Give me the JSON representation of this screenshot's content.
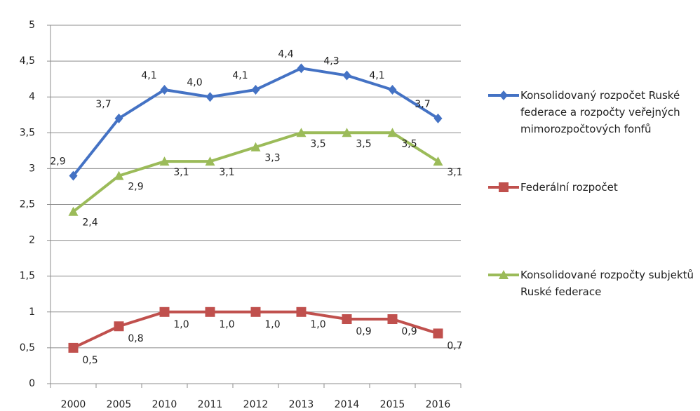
{
  "chart_data": {
    "type": "line",
    "categories": [
      "2000",
      "2005",
      "2010",
      "2011",
      "2012",
      "2013",
      "2014",
      "2015",
      "2016"
    ],
    "ylim": [
      0,
      5
    ],
    "yticks": [
      0,
      {
        "value": 0.5,
        "label": "0,5"
      },
      1,
      {
        "value": 1.5,
        "label": "1,5"
      },
      2,
      {
        "value": 2.5,
        "label": "2,5"
      },
      3,
      {
        "value": 3.5,
        "label": "3,5"
      },
      4,
      {
        "value": 4.5,
        "label": "4,5"
      },
      5
    ],
    "grid": true,
    "legend": "right",
    "series": [
      {
        "name": "Konsolidovaný rozpočet Ruské federace a rozpočty veřejných mimorozpočtových fonfů",
        "color": "#4472c4",
        "marker": "diamond",
        "values": [
          2.9,
          3.7,
          4.1,
          4.0,
          4.1,
          4.4,
          4.3,
          4.1,
          3.7
        ],
        "value_labels": [
          "2,9",
          "3,7",
          "4,1",
          "4,0",
          "4,1",
          "4,4",
          "4,3",
          "4,1",
          "3,7"
        ]
      },
      {
        "name": "Federální rozpočet",
        "color": "#c0504d",
        "marker": "square",
        "values": [
          0.5,
          0.8,
          1.0,
          1.0,
          1.0,
          1.0,
          0.9,
          0.9,
          0.7
        ],
        "value_labels": [
          "0,5",
          "0,8",
          "1,0",
          "1,0",
          "1,0",
          "1,0",
          "0,9",
          "0,9",
          "0,7"
        ]
      },
      {
        "name": "Konsolidované rozpočty subjektů Ruské federace",
        "color": "#9bbb59",
        "marker": "triangle",
        "values": [
          2.4,
          2.9,
          3.1,
          3.1,
          3.3,
          3.5,
          3.5,
          3.5,
          3.1
        ],
        "value_labels": [
          "2,4",
          "2,9",
          "3,1",
          "3,1",
          "3,3",
          "3,5",
          "3,5",
          "3,5",
          "3,1"
        ]
      }
    ]
  }
}
